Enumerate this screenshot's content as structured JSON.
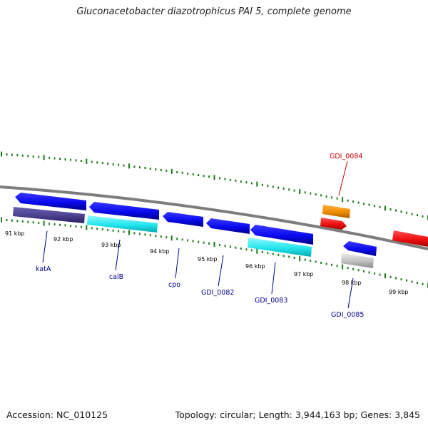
{
  "title": "Gluconacetobacter diazotrophicus PAI 5, complete genome",
  "footer": {
    "accession": "Accession: NC_010125",
    "summary": "Topology: circular; Length: 3,944,163 bp; Genes: 3,845"
  },
  "colors": {
    "backbone": "#808080",
    "ticks": "#1a7a1a",
    "label_blue": "#00008b",
    "label_red": "#cc0000"
  },
  "scale_labels": [
    "91 kbp",
    "92 kbp",
    "93 kbp",
    "94 kbp",
    "95 kbp",
    "96 kbp",
    "97 kbp",
    "98 kbp",
    "99 kbp"
  ],
  "gene_labels": [
    "katA",
    "calB",
    "cpo",
    "GDI_0082",
    "GDI_0083",
    "GDI_0084",
    "GDI_0085"
  ],
  "feature_colors": {
    "forward_cds": "#0a0af0",
    "cds_dark": "#4b3f8f",
    "cds_cyan": "#22e6ee",
    "cds_orange": "#f08c00",
    "cds_red": "#f01010",
    "cds_gray": "#c0c0c0"
  }
}
